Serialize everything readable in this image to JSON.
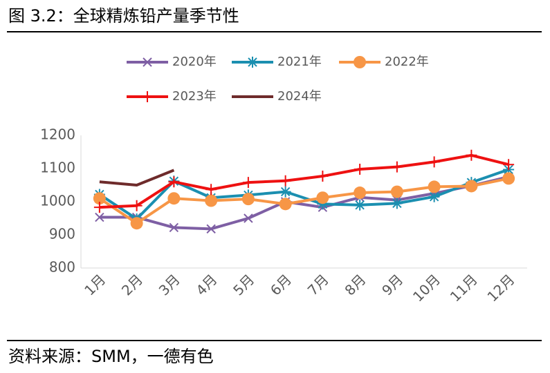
{
  "chart_data": {
    "type": "line",
    "title": "图 3.2：全球精炼铅产量季节性",
    "source": "资料来源：SMM，一德有色",
    "categories": [
      "1月",
      "2月",
      "3月",
      "4月",
      "5月",
      "6月",
      "7月",
      "8月",
      "9月",
      "10月",
      "11月",
      "12月"
    ],
    "ylim": [
      800,
      1200
    ],
    "yticks": [
      800,
      900,
      1000,
      1100,
      1200
    ],
    "grid": false,
    "series": [
      {
        "name": "2020年",
        "color": "#7e5fa4",
        "marker": "x",
        "values": [
          953,
          953,
          922,
          918,
          950,
          1000,
          983,
          1013,
          1005,
          1025,
          1048,
          1075
        ]
      },
      {
        "name": "2021年",
        "color": "#1b8fb0",
        "marker": "star",
        "values": [
          1022,
          948,
          1062,
          1012,
          1020,
          1030,
          993,
          990,
          995,
          1015,
          1058,
          1097
        ]
      },
      {
        "name": "2022年",
        "color": "#f79646",
        "marker": "circle",
        "values": [
          1010,
          935,
          1010,
          1003,
          1008,
          993,
          1012,
          1027,
          1030,
          1045,
          1047,
          1070
        ]
      },
      {
        "name": "2023年",
        "color": "#ee1111",
        "marker": "plus",
        "values": [
          983,
          988,
          1060,
          1037,
          1058,
          1063,
          1077,
          1098,
          1105,
          1120,
          1140,
          1112
        ]
      },
      {
        "name": "2024年",
        "color": "#6e2b2b",
        "marker": "none",
        "values": [
          1060,
          1050,
          1095,
          null,
          null,
          null,
          null,
          null,
          null,
          null,
          null,
          null
        ]
      }
    ]
  }
}
